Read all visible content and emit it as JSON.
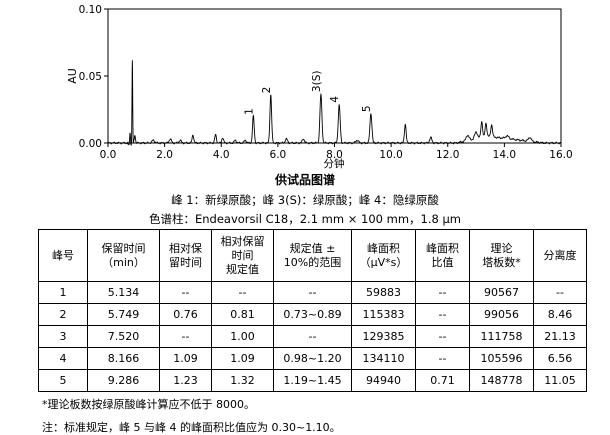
{
  "chart_data": {
    "type": "line",
    "xlabel": "分钟",
    "ylabel": "AU",
    "xlim": [
      0,
      16
    ],
    "ylim": [
      0,
      0.1
    ],
    "xticks": [
      "0.0",
      "2.0",
      "4.0",
      "6.0",
      "8.0",
      "10.0",
      "12.0",
      "14.0",
      "16.0"
    ],
    "yticks": [
      "0.00",
      "0.05",
      "0.10"
    ],
    "peak_labels": [
      {
        "text": "1",
        "x": 5.134,
        "y": 0.021
      },
      {
        "text": "2",
        "x": 5.749,
        "y": 0.037
      },
      {
        "text": "3(S)",
        "x": 7.52,
        "y": 0.038
      },
      {
        "text": "4",
        "x": 8.166,
        "y": 0.03
      },
      {
        "text": "5",
        "x": 9.286,
        "y": 0.023
      }
    ],
    "peaks": [
      {
        "t": 0.78,
        "h": 0.009,
        "w": 0.015
      },
      {
        "t": 0.86,
        "h": 0.063,
        "w": 0.012
      },
      {
        "t": 0.95,
        "h": 0.006,
        "w": 0.02
      },
      {
        "t": 1.6,
        "h": 0.002,
        "w": 0.05
      },
      {
        "t": 2.2,
        "h": 0.003,
        "w": 0.04
      },
      {
        "t": 2.55,
        "h": 0.002,
        "w": 0.04
      },
      {
        "t": 3.0,
        "h": 0.006,
        "w": 0.03
      },
      {
        "t": 3.8,
        "h": 0.006,
        "w": 0.03
      },
      {
        "t": 4.05,
        "h": 0.004,
        "w": 0.03
      },
      {
        "t": 4.5,
        "h": 0.002,
        "w": 0.04
      },
      {
        "t": 4.85,
        "h": 0.002,
        "w": 0.04
      },
      {
        "t": 5.134,
        "h": 0.02,
        "w": 0.03
      },
      {
        "t": 5.749,
        "h": 0.036,
        "w": 0.03
      },
      {
        "t": 6.3,
        "h": 0.003,
        "w": 0.04
      },
      {
        "t": 6.9,
        "h": 0.003,
        "w": 0.04
      },
      {
        "t": 7.52,
        "h": 0.036,
        "w": 0.035
      },
      {
        "t": 8.166,
        "h": 0.028,
        "w": 0.035
      },
      {
        "t": 8.8,
        "h": 0.002,
        "w": 0.05
      },
      {
        "t": 9.286,
        "h": 0.022,
        "w": 0.035
      },
      {
        "t": 10.5,
        "h": 0.014,
        "w": 0.03
      },
      {
        "t": 11.4,
        "h": 0.004,
        "w": 0.04
      },
      {
        "t": 12.7,
        "h": 0.004,
        "w": 0.05
      },
      {
        "t": 13.0,
        "h": 0.005,
        "w": 0.05
      },
      {
        "t": 13.2,
        "h": 0.012,
        "w": 0.03
      },
      {
        "t": 13.35,
        "h": 0.01,
        "w": 0.03
      },
      {
        "t": 13.55,
        "h": 0.009,
        "w": 0.03
      },
      {
        "t": 14.1,
        "h": 0.002,
        "w": 0.06
      },
      {
        "t": 14.9,
        "h": 0.003,
        "w": 0.05
      }
    ],
    "hump": {
      "start": 12.3,
      "peak": 13.4,
      "end": 15.4,
      "height": 0.005
    }
  },
  "caption": {
    "title": "供试品图谱",
    "peaks": "峰 1：新绿原酸；峰 3(S)：绿原酸；峰 4：隐绿原酸",
    "column": "色谱柱：Endeavorsil C18，2.1 mm × 100 mm，1.8 μm"
  },
  "table": {
    "headers": [
      "峰号",
      "保留时间\n（min）",
      "相对保\n留时间",
      "相对保留\n时间\n规定值",
      "规定值 ±\n10%的范围",
      "峰面积\n（μV*s）",
      "峰面积\n比值",
      "理论\n塔板数*",
      "分离度"
    ],
    "rows": [
      [
        "1",
        "5.134",
        "--",
        "--",
        "--",
        "59883",
        "--",
        "90567",
        "--"
      ],
      [
        "2",
        "5.749",
        "0.76",
        "0.81",
        "0.73~0.89",
        "115383",
        "--",
        "99056",
        "8.46"
      ],
      [
        "3",
        "7.520",
        "--",
        "1.00",
        "--",
        "129385",
        "--",
        "111758",
        "21.13"
      ],
      [
        "4",
        "8.166",
        "1.09",
        "1.09",
        "0.98~1.20",
        "134110",
        "--",
        "105596",
        "6.56"
      ],
      [
        "5",
        "9.286",
        "1.23",
        "1.32",
        "1.19~1.45",
        "94940",
        "0.71",
        "148778",
        "11.05"
      ]
    ]
  },
  "notes": {
    "n1": "*理论板数按绿原酸峰计算应不低于 8000。",
    "n2": "注：标准规定，峰 5 与峰 4 的峰面积比值应为 0.30~1.10。"
  }
}
